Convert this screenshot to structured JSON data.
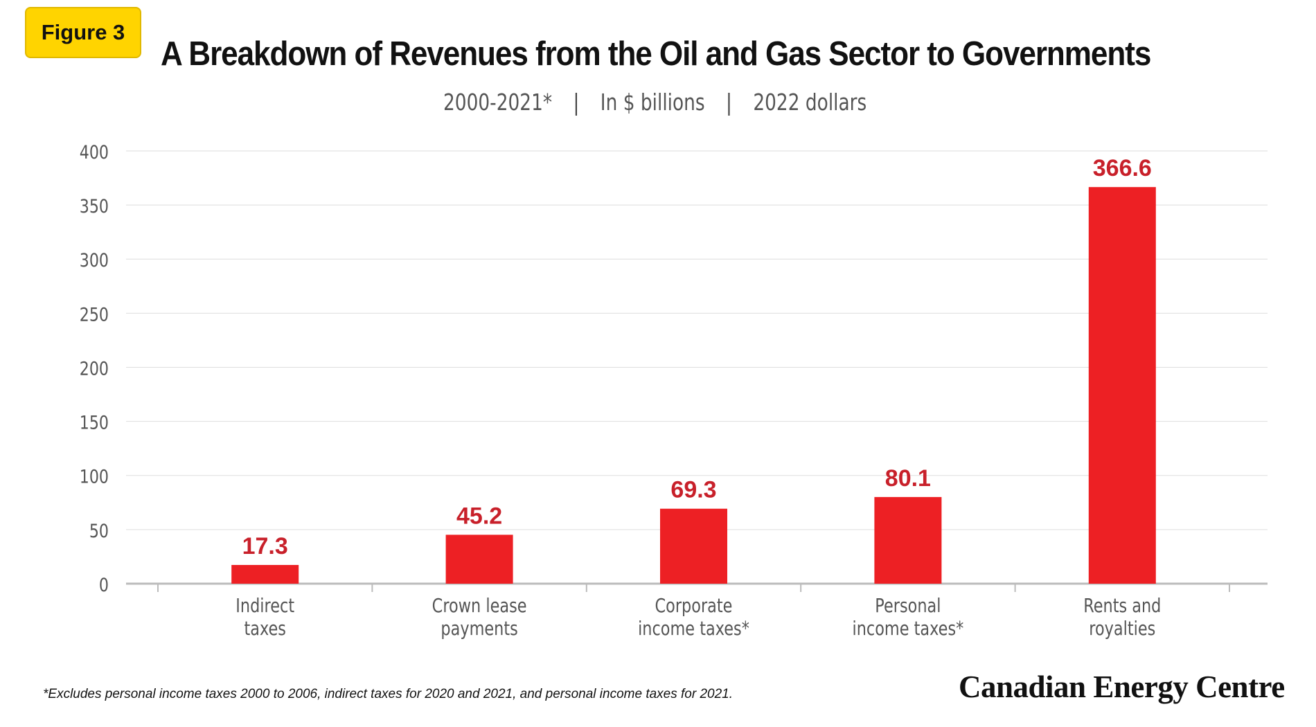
{
  "badge": "Figure 3",
  "title": "A Breakdown of Revenues from the Oil and Gas Sector to Governments",
  "subtitle": {
    "period": "2000-2021*",
    "separator": "|",
    "unit": "In $ billions",
    "basis": "2022 dollars"
  },
  "footnote": "*Excludes personal income taxes 2000 to 2006, indirect taxes for 2020 and 2021, and personal income taxes for 2021.",
  "brand": "Canadian Energy Centre",
  "chart_data": {
    "type": "bar",
    "categories": [
      [
        "Indirect",
        "taxes"
      ],
      [
        "Crown lease",
        "payments"
      ],
      [
        "Corporate",
        "income taxes*"
      ],
      [
        "Personal",
        "income taxes*"
      ],
      [
        "Rents and",
        "royalties"
      ]
    ],
    "values": [
      17.3,
      45.2,
      69.3,
      80.1,
      366.6
    ],
    "value_labels": [
      "17.3",
      "45.2",
      "69.3",
      "80.1",
      "366.6"
    ],
    "ylim": [
      0,
      400
    ],
    "yticks": [
      0,
      50,
      100,
      150,
      200,
      250,
      300,
      350,
      400
    ],
    "grid": true,
    "bar_color": "#ed2024",
    "label_color": "#c8202a"
  }
}
